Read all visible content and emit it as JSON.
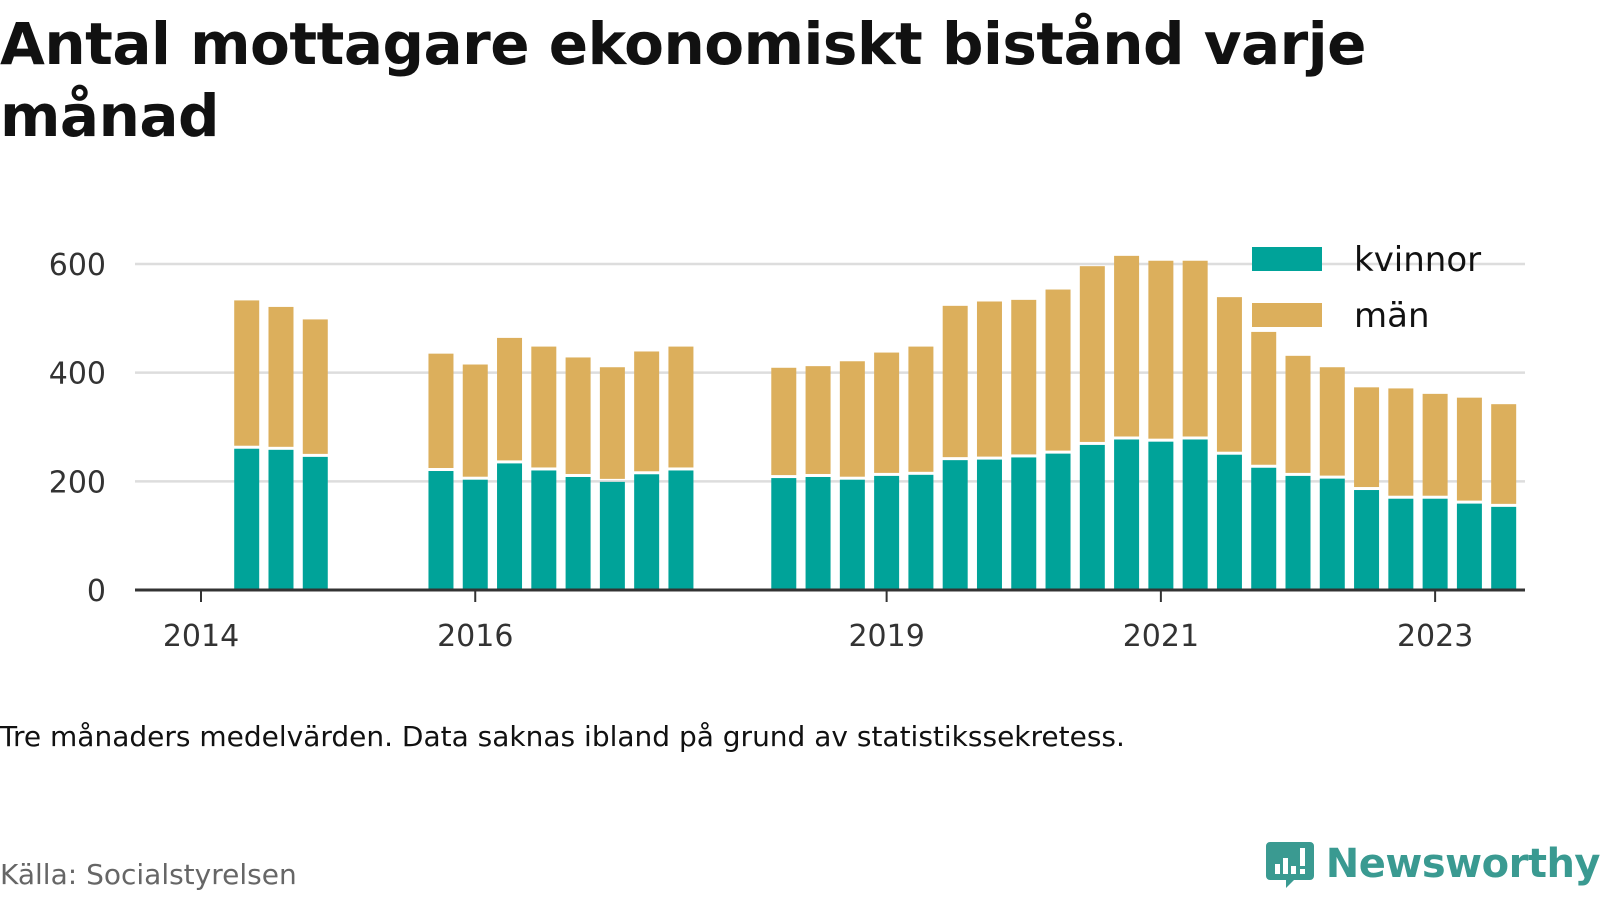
{
  "title": "Antal mottagare ekonomiskt bistånd varje månad",
  "note": "Tre månaders medelvärden. Data saknas ibland på grund av statistikssekretess.",
  "source": "Källa: Socialstyrelsen",
  "brand": "Newsworthy",
  "colors": {
    "kvinnor": "#00a399",
    "man": "#dcaf5c",
    "grid": "#dddddd",
    "axis": "#333333",
    "brand": "#3a9a91"
  },
  "chart_data": {
    "type": "bar",
    "stacked": true,
    "ylim": [
      0,
      650
    ],
    "yticks": [
      0,
      200,
      400,
      600
    ],
    "grid": true,
    "legend_position": "top-right",
    "x_year_ticks": [
      2014,
      2016,
      2019,
      2021,
      2023
    ],
    "x_tick_labels": [
      "2014",
      "2016",
      "2019",
      "2021",
      "2023"
    ],
    "series": [
      {
        "name": "kvinnor",
        "color": "#00a399",
        "values": [
          260,
          258,
          245,
          219,
          203,
          233,
          220,
          208,
          199,
          213,
          220,
          206,
          208,
          203,
          210,
          212,
          239,
          240,
          244,
          251,
          267,
          277,
          273,
          277,
          249,
          225,
          210,
          205,
          184,
          168,
          168,
          159,
          153
        ]
      },
      {
        "name": "män",
        "color": "#dcaf5c",
        "values": [
          273,
          263,
          253,
          216,
          212,
          231,
          228,
          220,
          211,
          226,
          228,
          203,
          204,
          218,
          227,
          236,
          284,
          291,
          290,
          302,
          329,
          338,
          333,
          329,
          290,
          250,
          221,
          205,
          189,
          203,
          193,
          195,
          189
        ]
      }
    ],
    "periods": [
      "2014-05",
      "2014-08",
      "2014-11",
      "2015-10",
      "2016-01",
      "2016-04",
      "2016-07",
      "2016-10",
      "2017-01",
      "2017-04",
      "2017-07",
      "2018-04",
      "2018-07",
      "2018-10",
      "2019-01",
      "2019-04",
      "2019-07",
      "2019-10",
      "2020-01",
      "2020-04",
      "2020-07",
      "2020-10",
      "2021-01",
      "2021-04",
      "2021-07",
      "2021-10",
      "2022-01",
      "2022-04",
      "2022-07",
      "2022-10",
      "2023-01",
      "2023-04",
      "2023-07"
    ]
  }
}
